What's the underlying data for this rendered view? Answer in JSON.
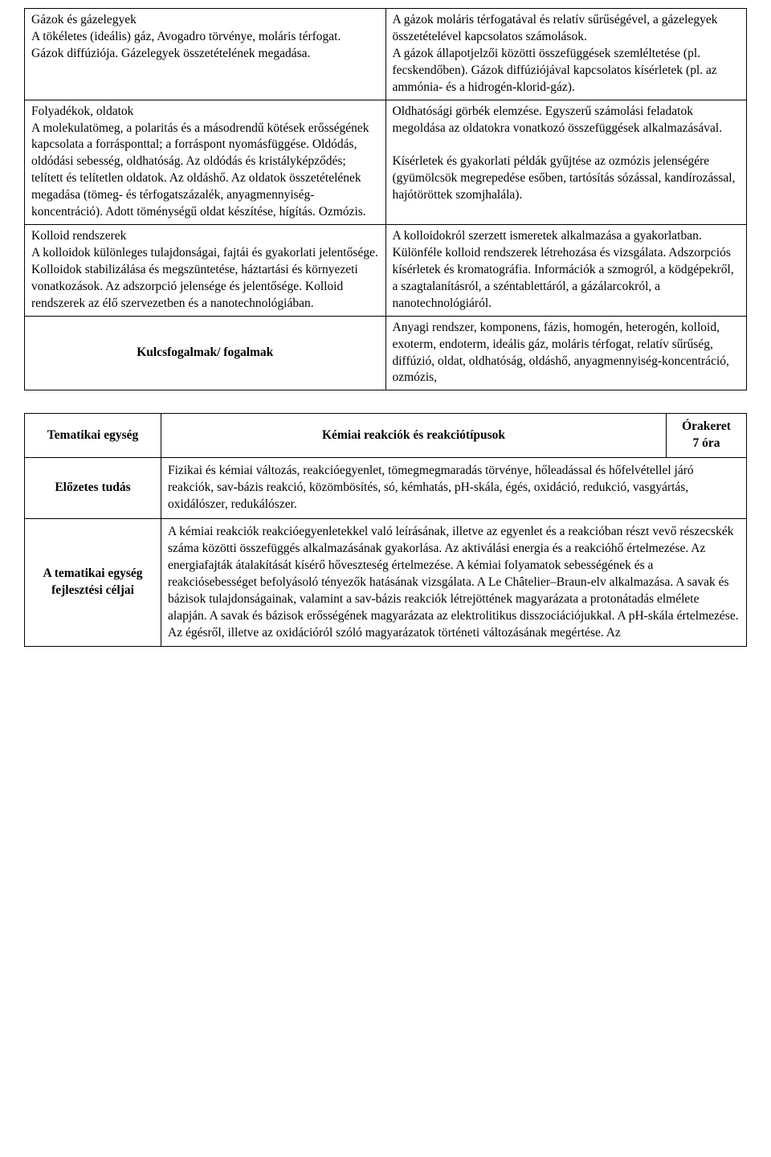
{
  "table1": {
    "rows": [
      {
        "left": "Gázok és gázelegyek\nA tökéletes (ideális) gáz, Avogadro törvénye, moláris térfogat.\nGázok diffúziója. Gázelegyek összetételének megadása.",
        "right": "A gázok moláris térfogatával és relatív sűrűségével, a gázelegyek összetételével kapcsolatos számolások.\nA gázok állapotjelzői közötti összefüggések szemléltetése (pl. fecskendőben). Gázok diffúziójával kapcsolatos kísérletek (pl. az ammónia- és a hidrogén-klorid-gáz)."
      },
      {
        "left": "Folyadékok, oldatok\nA molekulatömeg, a polaritás és a másodrendű kötések erősségének kapcsolata a forrásponttal; a forráspont nyomásfüggése. Oldódás, oldódási sebesség, oldhatóság. Az oldódás és kristályképződés; telített és telítetlen oldatok. Az oldáshő. Az oldatok összetételének megadása (tömeg- és térfogatszázalék, anyagmennyiség-koncentráció). Adott töménységű oldat készítése, hígítás. Ozmózis.",
        "right": "Oldhatósági görbék elemzése. Egyszerű számolási feladatok megoldása az oldatokra vonatkozó összefüggések alkalmazásával.\n\nKísérletek és gyakorlati példák gyűjtése az ozmózis jelenségére (gyümölcsök megrepedése esőben, tartósítás sózással, kandírozással, hajótöröttek szomjhalála)."
      },
      {
        "left": "Kolloid rendszerek\nA kolloidok különleges tulajdonságai, fajtái és gyakorlati jelentősége. Kolloidok stabilizálása és megszüntetése, háztartási és környezeti vonatkozások. Az adszorpció jelensége és jelentősége. Kolloid rendszerek az élő szervezetben és a nanotechnológiában.",
        "right": "A kolloidokról szerzett ismeretek alkalmazása a gyakorlatban.\nKülönféle kolloid rendszerek létrehozása és vizsgálata. Adszorpciós kísérletek és kromatográfia. Információk a szmogról, a ködgépekről, a szagtalanításról, a széntablettáról, a gázálarcokról, a nanotechnológiáról."
      }
    ],
    "kulcs_label": "Kulcsfogalmak/ fogalmak",
    "kulcs_text": "Anyagi rendszer, komponens, fázis, homogén, heterogén, kolloid, exoterm, endoterm, ideális gáz, moláris térfogat, relatív sűrűség, diffúzió, oldat, oldhatóság, oldáshő, anyagmennyiség-koncentráció, ozmózis,"
  },
  "table2": {
    "tematikai_label": "Tematikai egység",
    "tematikai_title": "Kémiai reakciók és reakciótípusok",
    "orakeret_label": "Órakeret",
    "orakeret_value": "7 óra",
    "elozetes_label": "Előzetes tudás",
    "elozetes_text": "Fizikai és kémiai változás, reakcióegyenlet, tömegmegmaradás törvénye, hőleadással és hőfelvétellel járó reakciók, sav-bázis reakció, közömbösítés, só, kémhatás, pH-skála, égés, oxidáció, redukció, vasgyártás, oxidálószer, redukálószer.",
    "fejlesztesi_label": "A tematikai egység fejlesztési céljai",
    "fejlesztesi_text": "A kémiai reakciók reakcióegyenletekkel való leírásának, illetve az egyenlet és a reakcióban részt vevő részecskék száma közötti összefüggés alkalmazásának gyakorlása. Az aktiválási energia és a reakcióhő értelmezése. Az energiafajták átalakítását kísérő hőveszteség értelmezése. A kémiai folyamatok sebességének és a reakciósebességet befolyásoló tényezők hatásának vizsgálata. A Le Châtelier–Braun-elv alkalmazása. A savak és bázisok tulajdonságainak, valamint a sav-bázis reakciók létrejöttének magyarázata a protonátadás elmélete alapján. A savak és bázisok erősségének magyarázata az elektrolitikus disszociációjukkal. A pH-skála értelmezése. Az égésről, illetve az oxidációról szóló magyarázatok történeti változásának megértése. Az"
  }
}
